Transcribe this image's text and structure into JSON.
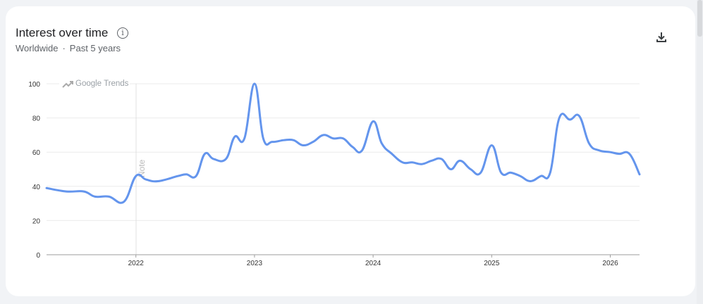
{
  "header": {
    "title": "Interest over time",
    "location": "Worldwide",
    "separator": "·",
    "period": "Past 5 years"
  },
  "icons": {
    "info": "info-circle-icon",
    "download": "download-icon",
    "trends": "trending-up-icon"
  },
  "watermark": "Google Trends",
  "annotation": "Note",
  "chart_data": {
    "type": "line",
    "title": "",
    "xlabel": "",
    "ylabel": "",
    "ylim": [
      0,
      100
    ],
    "xlim": [
      "2021-04-01",
      "2026-04-01"
    ],
    "yticks": [
      "0",
      "20",
      "40",
      "60",
      "80",
      "100"
    ],
    "xticks": [
      "2022",
      "2023",
      "2024",
      "2025",
      "2026"
    ],
    "grid": true,
    "color": "#6495ed",
    "series": [
      {
        "points": [
          [
            "2021-04-01",
            39
          ],
          [
            "2021-06-01",
            37
          ],
          [
            "2021-07-25",
            37
          ],
          [
            "2021-08-28",
            34
          ],
          [
            "2021-10-10",
            34
          ],
          [
            "2021-11-25",
            31
          ],
          [
            "2022-01-01",
            46
          ],
          [
            "2022-02-01",
            44
          ],
          [
            "2022-03-10",
            43
          ],
          [
            "2022-05-10",
            46
          ],
          [
            "2022-06-05",
            47
          ],
          [
            "2022-07-05",
            46
          ],
          [
            "2022-08-01",
            59
          ],
          [
            "2022-08-28",
            56
          ],
          [
            "2022-10-05",
            56
          ],
          [
            "2022-11-01",
            69
          ],
          [
            "2022-12-01",
            68
          ],
          [
            "2023-01-01",
            100
          ],
          [
            "2023-01-28",
            68
          ],
          [
            "2023-02-25",
            66
          ],
          [
            "2023-04-01",
            67
          ],
          [
            "2023-05-01",
            67
          ],
          [
            "2023-05-30",
            64
          ],
          [
            "2023-06-30",
            66
          ],
          [
            "2023-08-01",
            70
          ],
          [
            "2023-09-01",
            68
          ],
          [
            "2023-10-01",
            68
          ],
          [
            "2023-10-30",
            63
          ],
          [
            "2023-11-28",
            61
          ],
          [
            "2024-01-01",
            78
          ],
          [
            "2024-01-28",
            65
          ],
          [
            "2024-02-28",
            59
          ],
          [
            "2024-04-01",
            54
          ],
          [
            "2024-05-01",
            54
          ],
          [
            "2024-05-30",
            53
          ],
          [
            "2024-06-30",
            55
          ],
          [
            "2024-07-30",
            56
          ],
          [
            "2024-08-28",
            50
          ],
          [
            "2024-09-25",
            55
          ],
          [
            "2024-10-28",
            50
          ],
          [
            "2024-11-28",
            48
          ],
          [
            "2025-01-01",
            64
          ],
          [
            "2025-01-30",
            48
          ],
          [
            "2025-03-01",
            48
          ],
          [
            "2025-03-30",
            46
          ],
          [
            "2025-04-30",
            43
          ],
          [
            "2025-06-01",
            46
          ],
          [
            "2025-06-30",
            48
          ],
          [
            "2025-07-28",
            80
          ],
          [
            "2025-08-30",
            79
          ],
          [
            "2025-09-28",
            81
          ],
          [
            "2025-10-28",
            65
          ],
          [
            "2025-11-28",
            61
          ],
          [
            "2026-01-01",
            60
          ],
          [
            "2026-01-28",
            59
          ],
          [
            "2026-03-01",
            59
          ],
          [
            "2026-04-01",
            47
          ]
        ]
      }
    ]
  }
}
